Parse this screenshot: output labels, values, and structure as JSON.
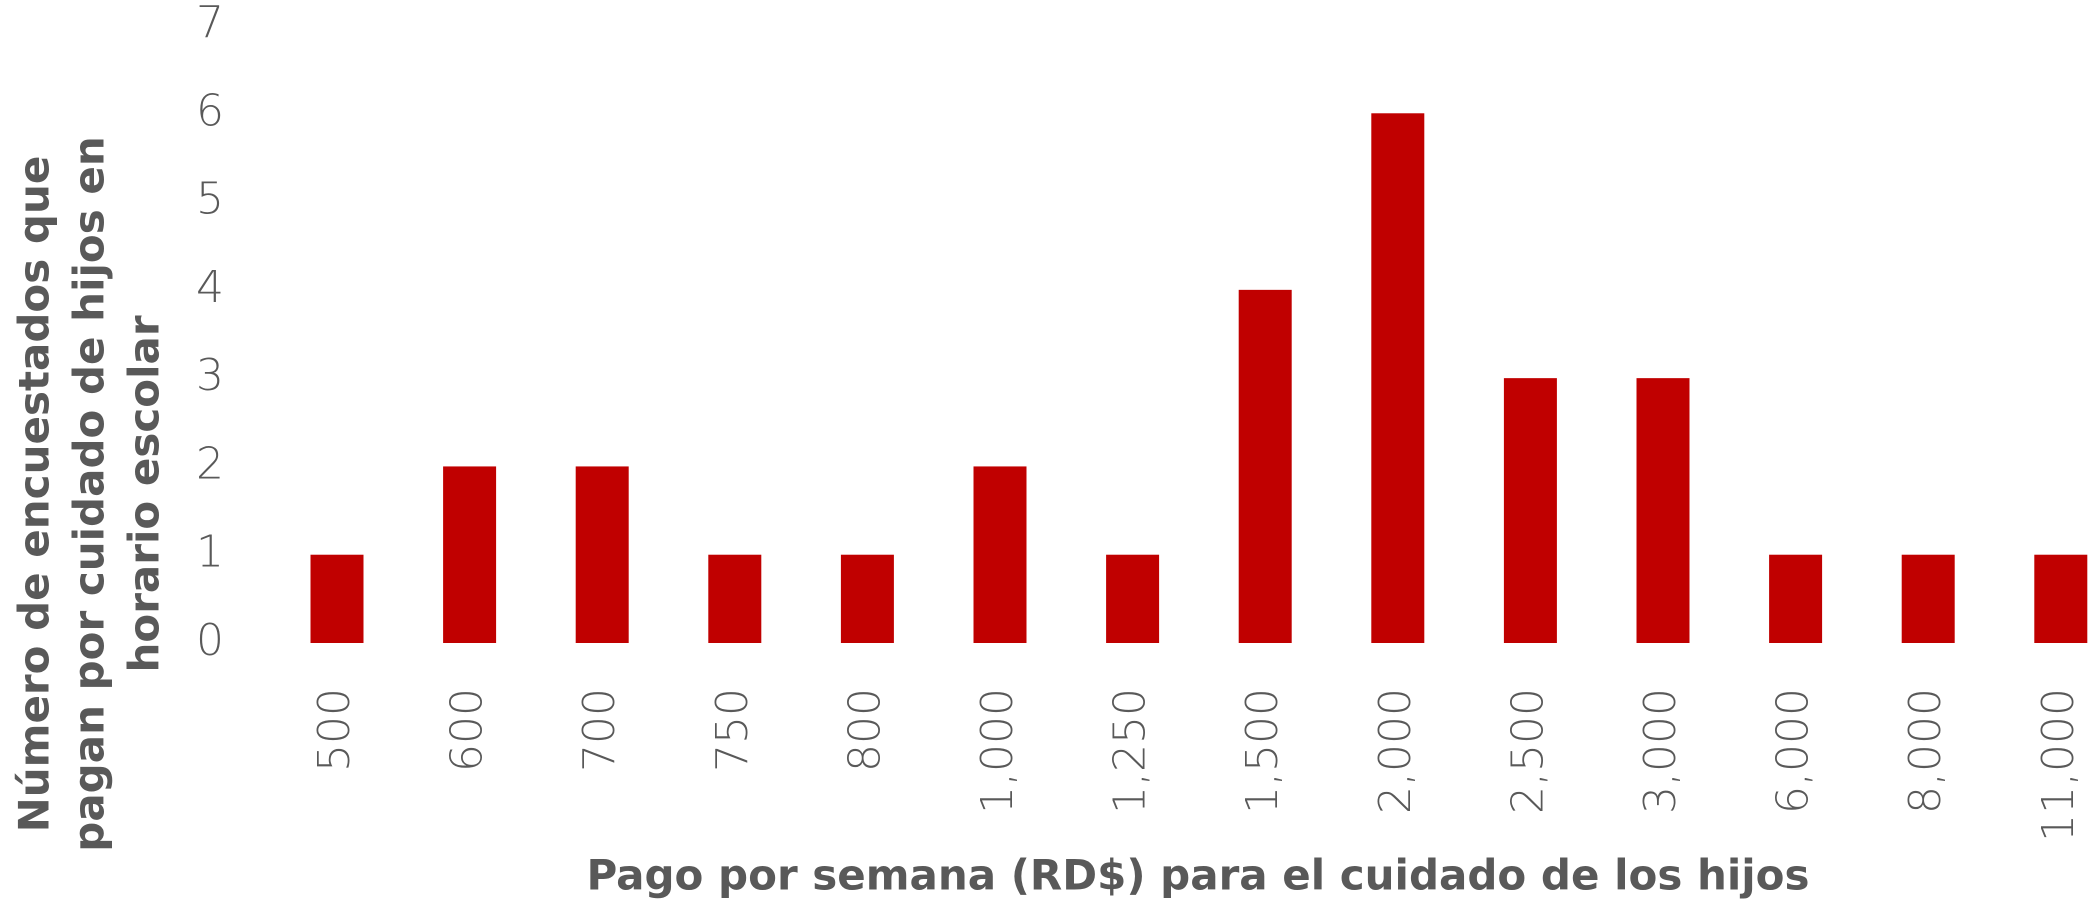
{
  "chart_data": {
    "type": "bar",
    "categories": [
      "500",
      "600",
      "700",
      "750",
      "800",
      "1,000",
      "1,250",
      "1,500",
      "2,000",
      "2,500",
      "3,000",
      "6,000",
      "8,000",
      "11,000"
    ],
    "values": [
      1,
      2,
      2,
      1,
      1,
      2,
      1,
      4,
      6,
      3,
      3,
      1,
      1,
      1
    ],
    "color": "#c00000",
    "ylim": [
      0,
      7
    ],
    "yticks": [
      0,
      1,
      2,
      3,
      4,
      5,
      6,
      7
    ],
    "grid": false,
    "xlabel": "Pago por semana (RD$) para el cuidado de los hijos",
    "ylabel": [
      "Número de encuestados que",
      "pagan por cuidado de hijos en",
      "horario escolar"
    ]
  }
}
